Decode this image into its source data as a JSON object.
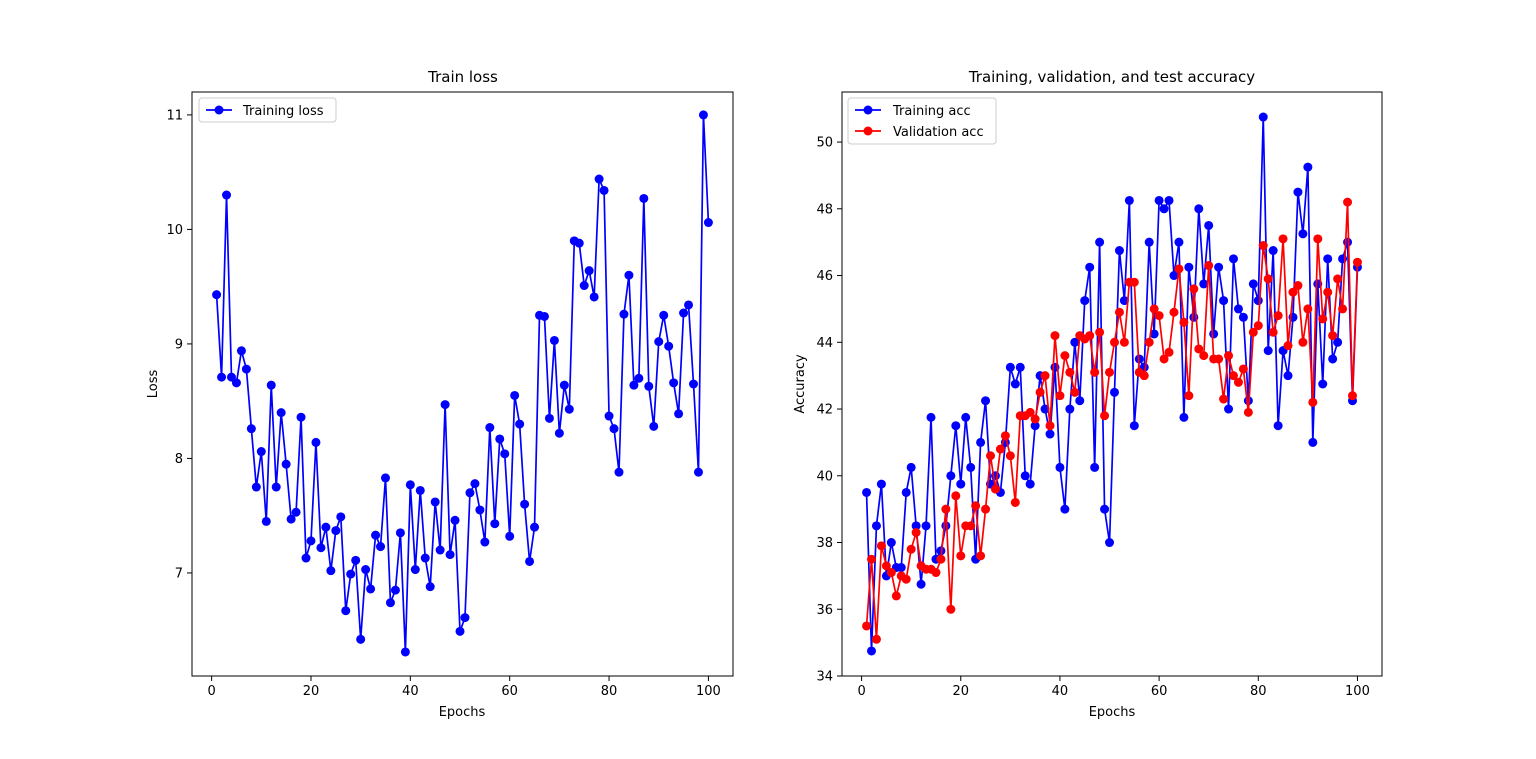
{
  "chart_data": [
    {
      "type": "line",
      "title": "Train loss",
      "xlabel": "Epochs",
      "ylabel": "Loss",
      "xlim": [
        -3.95,
        104.95
      ],
      "ylim": [
        6.1,
        11.2
      ],
      "xticks": [
        0,
        20,
        40,
        60,
        80,
        100
      ],
      "yticks": [
        7,
        8,
        9,
        10,
        11
      ],
      "legend_position": "top-left",
      "grid": false,
      "x": [
        1,
        2,
        3,
        4,
        5,
        6,
        7,
        8,
        9,
        10,
        11,
        12,
        13,
        14,
        15,
        16,
        17,
        18,
        19,
        20,
        21,
        22,
        23,
        24,
        25,
        26,
        27,
        28,
        29,
        30,
        31,
        32,
        33,
        34,
        35,
        36,
        37,
        38,
        39,
        40,
        41,
        42,
        43,
        44,
        45,
        46,
        47,
        48,
        49,
        50,
        51,
        52,
        53,
        54,
        55,
        56,
        57,
        58,
        59,
        60,
        61,
        62,
        63,
        64,
        65,
        66,
        67,
        68,
        69,
        70,
        71,
        72,
        73,
        74,
        75,
        76,
        77,
        78,
        79,
        80,
        81,
        82,
        83,
        84,
        85,
        86,
        87,
        88,
        89,
        90,
        91,
        92,
        93,
        94,
        95,
        96,
        97,
        98,
        99,
        100
      ],
      "series": [
        {
          "name": "Training loss",
          "color": "#0000ff",
          "values": [
            9.43,
            8.71,
            10.3,
            8.71,
            8.66,
            8.94,
            8.78,
            8.26,
            7.75,
            8.06,
            7.45,
            8.64,
            7.75,
            8.4,
            7.95,
            7.47,
            7.53,
            8.36,
            7.13,
            7.28,
            8.14,
            7.22,
            7.4,
            7.02,
            7.37,
            7.49,
            6.67,
            6.99,
            7.11,
            6.42,
            7.03,
            6.86,
            7.33,
            7.23,
            7.83,
            6.74,
            6.85,
            7.35,
            6.31,
            7.77,
            7.03,
            7.72,
            7.13,
            6.88,
            7.62,
            7.2,
            8.47,
            7.16,
            7.46,
            6.49,
            6.61,
            7.7,
            7.78,
            7.55,
            7.27,
            8.27,
            7.43,
            8.17,
            8.04,
            7.32,
            8.55,
            8.3,
            7.6,
            7.1,
            7.4,
            9.25,
            9.24,
            8.35,
            9.03,
            8.22,
            8.64,
            8.43,
            9.9,
            9.88,
            9.51,
            9.64,
            9.41,
            10.44,
            10.34,
            8.37,
            8.26,
            7.88,
            9.26,
            9.6,
            8.64,
            8.7,
            10.27,
            8.63,
            8.28,
            9.02,
            9.25,
            8.98,
            8.66,
            8.39,
            9.27,
            9.34,
            8.65,
            7.88,
            11.0,
            10.06
          ]
        }
      ]
    },
    {
      "type": "line",
      "title": "Training, validation, and test accuracy",
      "xlabel": "Epochs",
      "ylabel": "Accuracy",
      "xlim": [
        -3.95,
        104.95
      ],
      "ylim": [
        34.0,
        51.5
      ],
      "xticks": [
        0,
        20,
        40,
        60,
        80,
        100
      ],
      "yticks": [
        34,
        36,
        38,
        40,
        42,
        44,
        46,
        48,
        50
      ],
      "legend_position": "top-left",
      "grid": false,
      "x": [
        1,
        2,
        3,
        4,
        5,
        6,
        7,
        8,
        9,
        10,
        11,
        12,
        13,
        14,
        15,
        16,
        17,
        18,
        19,
        20,
        21,
        22,
        23,
        24,
        25,
        26,
        27,
        28,
        29,
        30,
        31,
        32,
        33,
        34,
        35,
        36,
        37,
        38,
        39,
        40,
        41,
        42,
        43,
        44,
        45,
        46,
        47,
        48,
        49,
        50,
        51,
        52,
        53,
        54,
        55,
        56,
        57,
        58,
        59,
        60,
        61,
        62,
        63,
        64,
        65,
        66,
        67,
        68,
        69,
        70,
        71,
        72,
        73,
        74,
        75,
        76,
        77,
        78,
        79,
        80,
        81,
        82,
        83,
        84,
        85,
        86,
        87,
        88,
        89,
        90,
        91,
        92,
        93,
        94,
        95,
        96,
        97,
        98,
        99,
        100
      ],
      "series": [
        {
          "name": "Training acc",
          "color": "#0000ff",
          "values": [
            39.5,
            34.75,
            38.5,
            39.75,
            37.0,
            38.0,
            37.25,
            37.25,
            39.5,
            40.25,
            38.5,
            36.75,
            38.5,
            41.75,
            37.5,
            37.75,
            38.5,
            40.0,
            41.5,
            39.75,
            41.75,
            40.25,
            37.5,
            41.0,
            42.25,
            39.75,
            40.0,
            39.5,
            41.0,
            43.25,
            42.75,
            43.25,
            40.0,
            39.75,
            41.5,
            43.0,
            42.0,
            41.25,
            43.25,
            40.25,
            39.0,
            42.0,
            44.0,
            42.25,
            45.25,
            46.25,
            40.25,
            47.0,
            39.0,
            38.0,
            42.5,
            46.75,
            45.25,
            48.25,
            41.5,
            43.5,
            43.25,
            47.0,
            44.25,
            48.25,
            48.0,
            48.25,
            46.0,
            47.0,
            41.75,
            46.25,
            44.75,
            48.0,
            45.75,
            47.5,
            44.25,
            46.25,
            45.25,
            42.0,
            46.5,
            45.0,
            44.75,
            42.25,
            45.75,
            45.25,
            50.75,
            43.75,
            46.75,
            41.5,
            43.75,
            43.0,
            44.75,
            48.5,
            47.25,
            49.25,
            41.0,
            45.75,
            42.75,
            46.5,
            43.5,
            44.0,
            46.5,
            47.0,
            42.25,
            46.25
          ]
        },
        {
          "name": "Validation acc",
          "color": "#ff0000",
          "values": [
            35.5,
            37.5,
            35.1,
            37.9,
            37.3,
            37.1,
            36.4,
            37.0,
            36.9,
            37.8,
            38.3,
            37.3,
            37.2,
            37.2,
            37.1,
            37.5,
            39.0,
            36.0,
            39.4,
            37.6,
            38.5,
            38.5,
            39.1,
            37.6,
            39.0,
            40.6,
            39.6,
            40.8,
            41.2,
            40.6,
            39.2,
            41.8,
            41.8,
            41.9,
            41.7,
            42.5,
            43.0,
            41.5,
            44.2,
            42.4,
            43.6,
            43.1,
            42.5,
            44.2,
            44.1,
            44.2,
            43.1,
            44.3,
            41.8,
            43.1,
            44.0,
            44.9,
            44.0,
            45.8,
            45.8,
            43.1,
            43.0,
            44.0,
            45.0,
            44.8,
            43.5,
            43.7,
            44.9,
            46.2,
            44.6,
            42.4,
            45.6,
            43.8,
            43.6,
            46.3,
            43.5,
            43.5,
            42.3,
            43.6,
            43.0,
            42.8,
            43.2,
            41.9,
            44.3,
            44.5,
            46.9,
            45.9,
            44.3,
            44.8,
            47.1,
            43.9,
            45.5,
            45.7,
            44.0,
            45.0,
            42.2,
            47.1,
            44.7,
            45.5,
            44.2,
            45.9,
            45.0,
            48.2,
            42.4,
            46.4
          ]
        }
      ]
    }
  ]
}
